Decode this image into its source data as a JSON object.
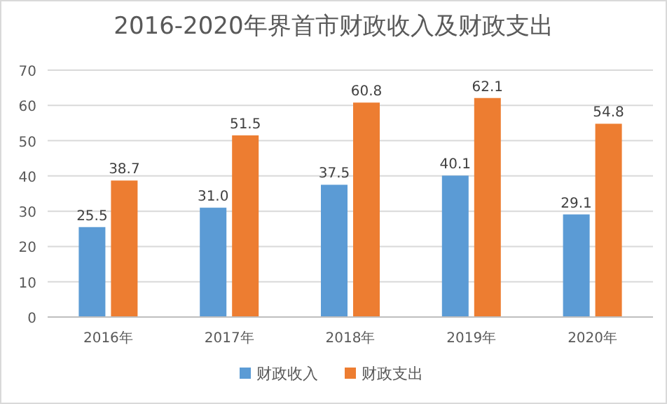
{
  "chart_data": {
    "type": "bar",
    "title": "2016-2020年界首市财政收入及财政支出",
    "categories": [
      "2016年",
      "2017年",
      "2018年",
      "2019年",
      "2020年"
    ],
    "series": [
      {
        "name": "财政收入",
        "color": "#5b9bd5",
        "values": [
          25.5,
          31.0,
          37.5,
          40.1,
          29.1
        ],
        "value_labels": [
          "25.5",
          "31.0",
          "37.5",
          "40.1",
          "29.1"
        ]
      },
      {
        "name": "财政支出",
        "color": "#ed7d31",
        "values": [
          38.7,
          51.5,
          60.8,
          62.1,
          54.8
        ],
        "value_labels": [
          "38.7",
          "51.5",
          "60.8",
          "62.1",
          "54.8"
        ]
      }
    ],
    "ylim": [
      0,
      70
    ],
    "yticks": [
      0,
      10,
      20,
      30,
      40,
      50,
      60,
      70
    ],
    "grid": "y",
    "legend": "bottom"
  }
}
